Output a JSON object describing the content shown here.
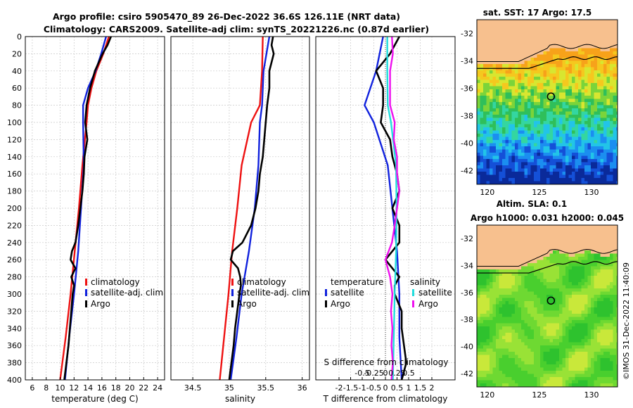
{
  "title": {
    "line1": "Argo profile: csiro 5905470_89 26-Dec-2022 36.6S 126.11E (NRT data)",
    "line2": "Climatology: CARS2009. Satellite-adj clim: synTS_20221226.nc (0.87d earlier)"
  },
  "watermark": "©IMOS 31-Dec-2022 11:40:09",
  "chart_data": [
    {
      "type": "line",
      "panel": "temperature",
      "xlabel": "temperature (deg C)",
      "xlim": [
        5,
        25
      ],
      "xticks": [
        6,
        8,
        10,
        12,
        14,
        16,
        18,
        20,
        22,
        24
      ],
      "ylim": [
        400,
        0
      ],
      "yticks": [
        0,
        20,
        40,
        60,
        80,
        100,
        120,
        140,
        160,
        180,
        200,
        220,
        240,
        260,
        280,
        300,
        320,
        340,
        360,
        380,
        400
      ],
      "legend": [
        "climatology",
        "satellite-adj. clim",
        "Argo"
      ],
      "series": [
        {
          "name": "climatology",
          "color": "#ee1111",
          "depth": [
            0,
            20,
            40,
            60,
            80,
            100,
            150,
            200,
            250,
            300,
            350,
            400
          ],
          "values": [
            17.0,
            16.2,
            15.2,
            14.5,
            14.0,
            13.8,
            13.2,
            12.7,
            12.1,
            11.5,
            10.8,
            10.0
          ]
        },
        {
          "name": "satellite-adj. clim",
          "color": "#1122dd",
          "depth": [
            0,
            20,
            40,
            60,
            80,
            100,
            150,
            200,
            250,
            300,
            350,
            400
          ],
          "values": [
            16.6,
            15.9,
            15.1,
            14.0,
            13.3,
            13.3,
            13.4,
            13.0,
            12.6,
            12.0,
            11.3,
            10.7
          ]
        },
        {
          "name": "Argo",
          "color": "#000000",
          "depth": [
            0,
            10,
            20,
            40,
            60,
            80,
            100,
            120,
            140,
            160,
            180,
            200,
            220,
            240,
            250,
            260,
            270,
            280,
            290,
            300,
            320,
            340,
            360,
            380,
            400
          ],
          "values": [
            17.3,
            16.8,
            16.1,
            15.0,
            14.3,
            13.8,
            13.6,
            13.9,
            13.5,
            13.4,
            13.2,
            12.9,
            12.6,
            12.2,
            11.7,
            11.5,
            12.2,
            11.6,
            12.0,
            11.8,
            11.6,
            11.4,
            11.2,
            10.9,
            10.6
          ]
        }
      ]
    },
    {
      "type": "line",
      "panel": "salinity",
      "xlabel": "salinity",
      "xlim": [
        34.2,
        36.1
      ],
      "xticks": [
        34.5,
        35,
        35.5,
        36
      ],
      "ylim": [
        400,
        0
      ],
      "legend": [
        "climatology",
        "satellite-adj. clim",
        "Argo"
      ],
      "series": [
        {
          "name": "climatology",
          "color": "#ee1111",
          "depth": [
            0,
            40,
            80,
            100,
            150,
            200,
            250,
            300,
            350,
            400
          ],
          "values": [
            35.46,
            35.45,
            35.42,
            35.3,
            35.17,
            35.11,
            35.04,
            34.99,
            34.93,
            34.87
          ]
        },
        {
          "name": "satellite-adj. clim",
          "color": "#1122dd",
          "depth": [
            0,
            20,
            40,
            80,
            100,
            150,
            200,
            250,
            300,
            350,
            400
          ],
          "values": [
            35.55,
            35.51,
            35.47,
            35.45,
            35.42,
            35.4,
            35.35,
            35.27,
            35.17,
            35.1,
            35.02
          ]
        },
        {
          "name": "Argo",
          "color": "#000000",
          "depth": [
            0,
            10,
            20,
            40,
            60,
            80,
            100,
            120,
            140,
            160,
            180,
            200,
            220,
            240,
            250,
            260,
            270,
            280,
            290,
            300,
            320,
            340,
            360,
            380,
            400
          ],
          "values": [
            35.6,
            35.58,
            35.61,
            35.55,
            35.55,
            35.52,
            35.5,
            35.48,
            35.46,
            35.42,
            35.4,
            35.36,
            35.3,
            35.18,
            35.05,
            35.02,
            35.12,
            35.15,
            35.16,
            35.14,
            35.11,
            35.08,
            35.06,
            35.03,
            35.0
          ]
        }
      ]
    },
    {
      "type": "line",
      "panel": "difference",
      "xlabel": "T difference from climatology",
      "xlabel2": "S difference from climatology",
      "xlim": [
        -3,
        3
      ],
      "xticks": [
        -2,
        -1.5,
        -1,
        -0.5,
        0,
        0.5,
        1,
        1.5,
        2
      ],
      "xticklabels": [
        "-2",
        "-1.5",
        "-1",
        "-0.5",
        "0",
        "0.5",
        "1",
        "1.5",
        "2"
      ],
      "sticks": [
        -0.5,
        -0.25,
        0,
        0.25,
        0.5
      ],
      "sticklabels": [
        "-0.5",
        "-0.25",
        "0",
        "0.25",
        "0.5"
      ],
      "ylim": [
        400,
        0
      ],
      "legend_left_title": "temperature",
      "legend_right_title": "salinity",
      "legend_left": [
        "satellite",
        "Argo"
      ],
      "legend_right": [
        "satellite",
        "Argo"
      ],
      "series": [
        {
          "name": "temperature satellite",
          "color": "#1122dd",
          "depth": [
            0,
            40,
            80,
            100,
            150,
            200,
            250,
            300,
            350,
            400
          ],
          "values": [
            -0.1,
            -0.4,
            -0.9,
            -0.5,
            0.1,
            0.3,
            0.5,
            0.6,
            0.6,
            0.7
          ]
        },
        {
          "name": "temperature Argo",
          "color": "#000000",
          "depth": [
            0,
            20,
            40,
            60,
            80,
            100,
            120,
            140,
            160,
            180,
            200,
            220,
            240,
            260,
            280,
            290,
            300,
            320,
            340,
            360,
            380,
            400
          ],
          "values": [
            0.6,
            0.2,
            -0.4,
            -0.1,
            -0.1,
            -0.2,
            0.2,
            0.3,
            0.5,
            0.6,
            0.3,
            0.6,
            0.6,
            0.0,
            0.6,
            0.4,
            0.4,
            0.7,
            0.7,
            0.8,
            0.9,
            0.7
          ]
        },
        {
          "name": "salinity satellite",
          "color": "#22dddd",
          "depth": [
            0,
            40,
            80,
            100,
            150,
            200,
            250,
            300,
            350,
            400
          ],
          "values": [
            0.04,
            0.04,
            0.05,
            0.12,
            0.23,
            0.24,
            0.23,
            0.2,
            0.18,
            0.16
          ]
        },
        {
          "name": "salinity Argo",
          "color": "#ee11ee",
          "depth": [
            0,
            20,
            40,
            60,
            80,
            100,
            120,
            140,
            160,
            180,
            200,
            220,
            240,
            260,
            280,
            300,
            320,
            340,
            360,
            380,
            400
          ],
          "values": [
            0.14,
            0.16,
            0.1,
            0.1,
            0.1,
            0.2,
            0.18,
            0.25,
            0.25,
            0.3,
            0.25,
            0.2,
            0.14,
            0.0,
            0.1,
            0.15,
            0.12,
            0.15,
            0.13,
            0.16,
            0.13
          ]
        }
      ]
    }
  ],
  "maps": {
    "sst": {
      "title": "sat. SST: 17 Argo: 17.5",
      "yticks": [
        "-32",
        "-34",
        "-36",
        "-38",
        "-40",
        "-42"
      ],
      "xticks": [
        "120",
        "125",
        "130"
      ]
    },
    "sla": {
      "title": "Altim. SLA: 0.1",
      "subtitle": "Argo h1000: 0.031 h2000: 0.045",
      "yticks": [
        "-32",
        "-34",
        "-36",
        "-38",
        "-40",
        "-42"
      ],
      "xticks": [
        "120",
        "125",
        "130"
      ]
    }
  }
}
